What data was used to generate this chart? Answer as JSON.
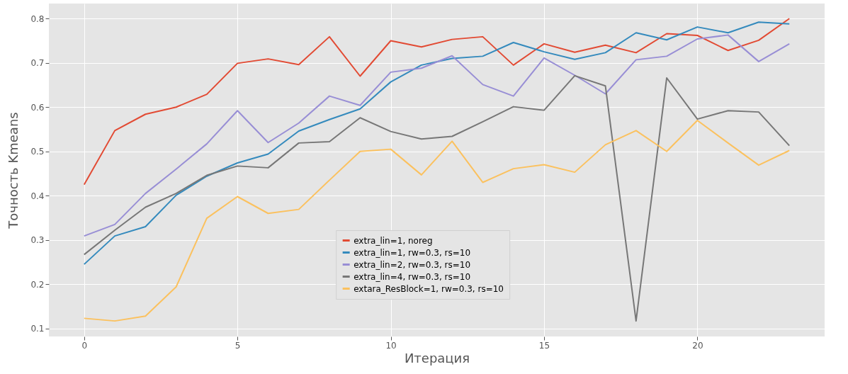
{
  "chart_data": {
    "type": "line",
    "xlabel": "Итерация",
    "ylabel": "Точность Kmeans",
    "x": [
      0,
      1,
      2,
      3,
      4,
      5,
      6,
      7,
      8,
      9,
      10,
      11,
      12,
      13,
      14,
      15,
      16,
      17,
      18,
      19,
      20,
      21,
      22,
      23
    ],
    "xlim": [
      -1.15,
      24.15
    ],
    "ylim": [
      0.082,
      0.834
    ],
    "xticks": [
      0,
      5,
      10,
      15,
      20
    ],
    "yticks": [
      0.1,
      0.2,
      0.3,
      0.4,
      0.5,
      0.6,
      0.7,
      0.8
    ],
    "grid": true,
    "legend": "bottom",
    "marker": "none",
    "line_style": "solid",
    "series": [
      {
        "name": "extra_lin=1, noreg",
        "color": "#e24a33",
        "values": [
          0.425,
          0.547,
          0.584,
          0.6,
          0.629,
          0.699,
          0.709,
          0.696,
          0.759,
          0.67,
          0.75,
          0.736,
          0.753,
          0.759,
          0.695,
          0.743,
          0.724,
          0.74,
          0.723,
          0.766,
          0.762,
          0.728,
          0.751,
          0.8
        ]
      },
      {
        "name": "extra_lin=1, rw=0.3, rs=10",
        "color": "#348abd",
        "values": [
          0.245,
          0.309,
          0.33,
          0.401,
          0.444,
          0.474,
          0.494,
          0.546,
          0.572,
          0.596,
          0.657,
          0.695,
          0.71,
          0.715,
          0.746,
          0.725,
          0.708,
          0.723,
          0.768,
          0.752,
          0.781,
          0.768,
          0.792,
          0.788
        ]
      },
      {
        "name": "extra_lin=2, rw=0.3, rs=10",
        "color": "#988ed5",
        "values": [
          0.309,
          0.335,
          0.405,
          0.46,
          0.517,
          0.592,
          0.52,
          0.564,
          0.625,
          0.604,
          0.679,
          0.688,
          0.716,
          0.651,
          0.625,
          0.711,
          0.672,
          0.63,
          0.707,
          0.715,
          0.754,
          0.763,
          0.703,
          0.743
        ]
      },
      {
        "name": "extra_lin=4, rw=0.3, rs=10",
        "color": "#777777",
        "values": [
          0.267,
          0.322,
          0.374,
          0.405,
          0.446,
          0.467,
          0.463,
          0.519,
          0.522,
          0.576,
          0.545,
          0.528,
          0.534,
          0.567,
          0.601,
          0.593,
          0.671,
          0.648,
          0.117,
          0.666,
          0.573,
          0.592,
          0.589,
          0.513
        ]
      },
      {
        "name": "extara_ResBlock=1, rw=0.3, rs=10",
        "color": "#fbc15e",
        "values": [
          0.123,
          0.117,
          0.128,
          0.194,
          0.349,
          0.398,
          0.36,
          0.369,
          0.435,
          0.5,
          0.505,
          0.447,
          0.523,
          0.43,
          0.461,
          0.47,
          0.453,
          0.515,
          0.547,
          0.5,
          0.57,
          0.519,
          0.469,
          0.502
        ]
      }
    ]
  }
}
